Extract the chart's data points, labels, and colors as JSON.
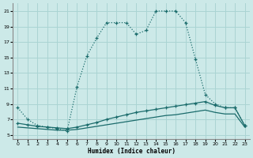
{
  "bg_color": "#cce9e8",
  "grid_color": "#aad4d3",
  "line_color": "#1a6b6b",
  "xlabel": "Humidex (Indice chaleur)",
  "xlim": [
    -0.5,
    23.5
  ],
  "ylim": [
    4.5,
    22
  ],
  "yticks": [
    5,
    7,
    9,
    11,
    13,
    15,
    17,
    19,
    21
  ],
  "xticks": [
    0,
    1,
    2,
    3,
    4,
    5,
    6,
    7,
    8,
    9,
    10,
    11,
    12,
    13,
    14,
    15,
    16,
    17,
    18,
    19,
    20,
    21,
    22,
    23
  ],
  "s1_x": [
    0,
    1,
    2,
    3,
    4,
    5,
    6,
    7,
    8,
    9,
    10,
    11,
    12,
    13,
    14,
    15,
    16,
    17,
    18,
    19,
    20,
    21,
    22,
    23
  ],
  "s1_y": [
    8.5,
    7.0,
    6.2,
    6.0,
    5.8,
    5.5,
    11.2,
    15.2,
    17.5,
    19.5,
    19.5,
    19.5,
    18.0,
    18.5,
    21.0,
    21.0,
    21.0,
    19.5,
    14.8,
    10.2,
    9.0,
    8.5,
    8.5,
    6.2
  ],
  "s2_x": [
    0,
    1,
    2,
    3,
    4,
    5,
    6,
    7,
    8,
    9,
    10,
    11,
    12,
    13,
    14,
    15,
    16,
    17,
    18,
    19,
    20,
    21,
    22,
    23
  ],
  "s2_y": [
    6.5,
    6.3,
    6.1,
    6.0,
    5.9,
    5.8,
    6.0,
    6.3,
    6.6,
    7.0,
    7.3,
    7.6,
    7.9,
    8.1,
    8.3,
    8.5,
    8.7,
    8.9,
    9.1,
    9.3,
    8.8,
    8.5,
    8.5,
    6.2
  ],
  "s3_x": [
    0,
    1,
    2,
    3,
    4,
    5,
    6,
    7,
    8,
    9,
    10,
    11,
    12,
    13,
    14,
    15,
    16,
    17,
    18,
    19,
    20,
    21,
    22,
    23
  ],
  "s3_y": [
    6.0,
    5.9,
    5.8,
    5.7,
    5.6,
    5.6,
    5.7,
    5.9,
    6.1,
    6.3,
    6.5,
    6.7,
    6.9,
    7.1,
    7.3,
    7.5,
    7.6,
    7.8,
    8.0,
    8.2,
    7.9,
    7.7,
    7.7,
    6.0
  ]
}
